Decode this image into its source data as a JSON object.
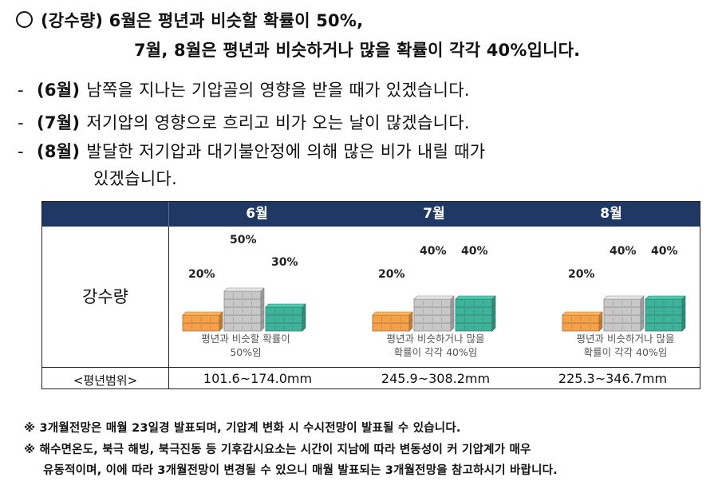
{
  "headline": {
    "line1": "(강수량) 6월은 평년과 비슷할 확률이 50%,",
    "line2": "7월, 8월은 평년과 비슷하거나 많을 확률이 각각 40%입니다."
  },
  "bullets": [
    {
      "dash": "-",
      "tag": "(6월)",
      "text": "남쪽을 지나는 기압골의 영향을 받을 때가 있겠습니다."
    },
    {
      "dash": "-",
      "tag": "(7월)",
      "text": "저기압의 영향으로 흐리고 비가 오는 날이 많겠습니다."
    },
    {
      "dash": "-",
      "tag": "(8월)",
      "text": "발달한 저기압과 대기불안정에 의해 많은 비가 내릴 때가",
      "continuation": "있겠습니다."
    }
  ],
  "table": {
    "headers": [
      "6월",
      "7월",
      "8월"
    ],
    "row_label": "강수량",
    "range_label": "<평년범위>",
    "months": [
      {
        "below": "20%",
        "normal": "50%",
        "above": "30%",
        "caption1": "평년과 비슷할 확률이",
        "caption2": "50%임",
        "range": "101.6~174.0mm"
      },
      {
        "below": "20%",
        "normal": "40%",
        "above": "40%",
        "caption1": "평년과 비슷하거나 많을",
        "caption2": "확률이 각각 40%임",
        "range": "245.9~308.2mm"
      },
      {
        "below": "20%",
        "normal": "40%",
        "above": "40%",
        "caption1": "평년과 비슷하거나 많을",
        "caption2": "확률이 각각 40%임",
        "range": "225.3~346.7mm"
      }
    ]
  },
  "colors": {
    "header_bg": "#1f3864",
    "below": "#f5a04a",
    "normal": "#c8c8c8",
    "above": "#3fb39a"
  },
  "notes": {
    "n1": "※ 3개월전망은 매월 23일경 발표되며, 기압계 변화 시 수시전망이 발표될 수 있습니다.",
    "n2": "※ 해수면온도, 북극 해빙, 북극진동 등 기후감시요소는 시간이 지남에 따라 변동성이 커 기압계가 매우",
    "n3": "유동적이며, 이에 따라 3개월전망이 변경될 수 있으니 매월 발표되는 3개월전망을 참고하시기 바랍니다."
  }
}
